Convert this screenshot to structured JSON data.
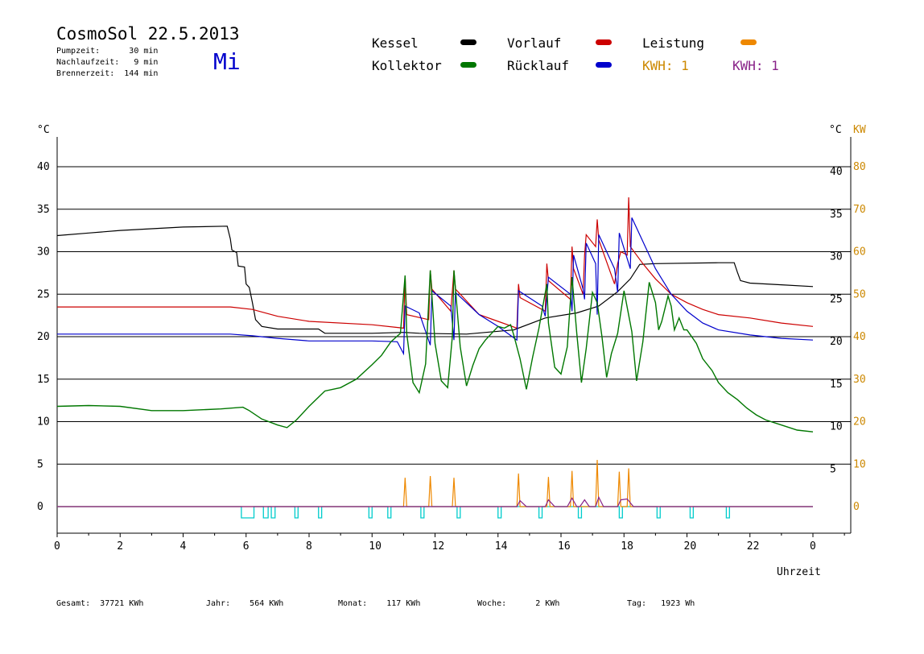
{
  "header": {
    "title": "CosmoSol 22.5.2013",
    "pump": "Pumpzeit:      30 min",
    "nachlauf": "Nachlaufzeit:   9 min",
    "brenner": "Brennerzeit:  144 min",
    "day": "Mi"
  },
  "legend": {
    "kessel": "Kessel",
    "kollektor": "Kollektor",
    "vorlauf": "Vorlauf",
    "ruecklauf": "Rücklauf",
    "leistung": "Leistung",
    "kwh1": "KWH: 1",
    "kwh2": "KWH: 1"
  },
  "colors": {
    "kessel": "#000000",
    "kollektor": "#007700",
    "vorlauf": "#cc0000",
    "ruecklauf": "#0000cc",
    "leistung": "#ee8800",
    "kwh2": "#882288",
    "pump": "#00cccc",
    "right_kw": "#cc8800"
  },
  "footer": {
    "gesamt": "Gesamt:  37721 KWh",
    "jahr": "Jahr:    564 KWh",
    "monat": "Monat:    117 KWh",
    "woche": "Woche:      2 KWh",
    "tag": "Tag:   1923 Wh"
  },
  "chart_data": {
    "type": "line",
    "left_unit": "°C",
    "right_unit_temp": "°C",
    "right_unit_kw": "KW",
    "xlabel": "Uhrzeit",
    "x_ticks": [
      "0",
      "2",
      "4",
      "6",
      "8",
      "10",
      "12",
      "14",
      "16",
      "18",
      "20",
      "22",
      "0"
    ],
    "y_ticks": [
      "0",
      "5",
      "10",
      "15",
      "20",
      "25",
      "30",
      "35",
      "40"
    ],
    "y_ticks_right": [
      "5",
      "10",
      "15",
      "20",
      "25",
      "30",
      "35",
      "40"
    ],
    "kw_ticks": [
      "0",
      "10",
      "20",
      "30",
      "40",
      "50",
      "60",
      "70",
      "80"
    ],
    "xlim": [
      0,
      24
    ],
    "ylim": [
      -3,
      45
    ],
    "grid": "horizontal",
    "series": [
      {
        "name": "Kessel",
        "key": "kessel",
        "points": [
          [
            0,
            31.9
          ],
          [
            1,
            32.2
          ],
          [
            2,
            32.5
          ],
          [
            3,
            32.7
          ],
          [
            4,
            32.9
          ],
          [
            5.4,
            33.0
          ],
          [
            5.5,
            31.5
          ],
          [
            5.55,
            30.2
          ],
          [
            5.7,
            29.9
          ],
          [
            5.75,
            28.3
          ],
          [
            5.95,
            28.2
          ],
          [
            6.0,
            26.2
          ],
          [
            6.1,
            25.8
          ],
          [
            6.2,
            24.0
          ],
          [
            6.3,
            22.0
          ],
          [
            6.5,
            21.2
          ],
          [
            7.0,
            20.9
          ],
          [
            8.3,
            20.9
          ],
          [
            8.5,
            20.4
          ],
          [
            10.0,
            20.4
          ],
          [
            11.0,
            20.5
          ],
          [
            11.5,
            20.4
          ],
          [
            13.0,
            20.3
          ],
          [
            14.5,
            20.8
          ],
          [
            15.5,
            22.2
          ],
          [
            16.5,
            22.8
          ],
          [
            17.2,
            23.6
          ],
          [
            17.8,
            25.3
          ],
          [
            18.2,
            26.8
          ],
          [
            18.5,
            28.5
          ],
          [
            19.0,
            28.6
          ],
          [
            21.0,
            28.7
          ],
          [
            21.5,
            28.7
          ],
          [
            21.6,
            27.6
          ],
          [
            21.7,
            26.6
          ],
          [
            22.0,
            26.3
          ],
          [
            23.0,
            26.1
          ],
          [
            24.0,
            25.9
          ]
        ]
      },
      {
        "name": "Vorlauf",
        "key": "vorlauf",
        "points": [
          [
            0,
            23.5
          ],
          [
            5.5,
            23.5
          ],
          [
            6.2,
            23.2
          ],
          [
            7.0,
            22.4
          ],
          [
            8.0,
            21.8
          ],
          [
            10.0,
            21.4
          ],
          [
            11.0,
            21.0
          ],
          [
            11.05,
            27.2
          ],
          [
            11.1,
            22.6
          ],
          [
            11.8,
            22.0
          ],
          [
            11.85,
            27.8
          ],
          [
            11.9,
            25.6
          ],
          [
            12.5,
            23.0
          ],
          [
            12.6,
            27.8
          ],
          [
            12.65,
            25.6
          ],
          [
            13.4,
            22.6
          ],
          [
            14.0,
            21.8
          ],
          [
            14.6,
            21.0
          ],
          [
            14.65,
            26.2
          ],
          [
            14.7,
            24.6
          ],
          [
            15.5,
            23.0
          ],
          [
            15.55,
            28.6
          ],
          [
            15.6,
            26.6
          ],
          [
            16.3,
            24.4
          ],
          [
            16.35,
            30.6
          ],
          [
            16.4,
            28.0
          ],
          [
            16.7,
            25.0
          ],
          [
            16.75,
            29.6
          ],
          [
            16.8,
            32.0
          ],
          [
            17.1,
            30.6
          ],
          [
            17.15,
            33.8
          ],
          [
            17.2,
            31.4
          ],
          [
            17.7,
            26.2
          ],
          [
            17.8,
            28.6
          ],
          [
            17.9,
            30.0
          ],
          [
            18.1,
            29.6
          ],
          [
            18.15,
            36.4
          ],
          [
            18.2,
            30.6
          ],
          [
            18.6,
            28.6
          ],
          [
            19.0,
            26.8
          ],
          [
            19.5,
            25.0
          ],
          [
            20.0,
            24.0
          ],
          [
            20.5,
            23.2
          ],
          [
            21.0,
            22.6
          ],
          [
            22.0,
            22.2
          ],
          [
            23.0,
            21.6
          ],
          [
            24.0,
            21.2
          ]
        ]
      },
      {
        "name": "Rücklauf",
        "key": "ruecklauf",
        "points": [
          [
            0,
            20.3
          ],
          [
            5.5,
            20.3
          ],
          [
            6.2,
            20.1
          ],
          [
            7.0,
            19.8
          ],
          [
            8.0,
            19.5
          ],
          [
            10.0,
            19.5
          ],
          [
            10.8,
            19.4
          ],
          [
            11.0,
            18.0
          ],
          [
            11.05,
            23.6
          ],
          [
            11.5,
            22.8
          ],
          [
            11.85,
            19.0
          ],
          [
            11.9,
            25.4
          ],
          [
            12.5,
            23.6
          ],
          [
            12.6,
            19.6
          ],
          [
            12.65,
            25.2
          ],
          [
            13.4,
            22.6
          ],
          [
            14.0,
            21.2
          ],
          [
            14.6,
            19.6
          ],
          [
            14.65,
            25.4
          ],
          [
            15.4,
            23.6
          ],
          [
            15.5,
            22.4
          ],
          [
            15.6,
            27.0
          ],
          [
            16.3,
            25.0
          ],
          [
            16.35,
            23.0
          ],
          [
            16.4,
            29.6
          ],
          [
            16.7,
            25.6
          ],
          [
            16.75,
            24.4
          ],
          [
            16.8,
            31.0
          ],
          [
            17.1,
            28.6
          ],
          [
            17.15,
            22.6
          ],
          [
            17.2,
            32.0
          ],
          [
            17.7,
            28.0
          ],
          [
            17.8,
            25.2
          ],
          [
            17.85,
            32.2
          ],
          [
            18.2,
            28.0
          ],
          [
            18.25,
            34.0
          ],
          [
            18.5,
            32.0
          ],
          [
            19.0,
            28.0
          ],
          [
            19.5,
            25.0
          ],
          [
            20.0,
            23.0
          ],
          [
            20.5,
            21.6
          ],
          [
            21.0,
            20.8
          ],
          [
            22.0,
            20.2
          ],
          [
            23.0,
            19.8
          ],
          [
            24.0,
            19.6
          ]
        ]
      },
      {
        "name": "Kollektor",
        "key": "kollektor",
        "points": [
          [
            0,
            11.8
          ],
          [
            1,
            11.9
          ],
          [
            2,
            11.8
          ],
          [
            3,
            11.3
          ],
          [
            4,
            11.3
          ],
          [
            5.2,
            11.5
          ],
          [
            5.9,
            11.7
          ],
          [
            6.1,
            11.3
          ],
          [
            6.5,
            10.3
          ],
          [
            7.0,
            9.6
          ],
          [
            7.3,
            9.3
          ],
          [
            7.6,
            10.2
          ],
          [
            8.0,
            11.8
          ],
          [
            8.5,
            13.6
          ],
          [
            9.0,
            14.0
          ],
          [
            9.5,
            15.0
          ],
          [
            10.0,
            16.7
          ],
          [
            10.3,
            17.8
          ],
          [
            10.6,
            19.4
          ],
          [
            10.9,
            20.4
          ],
          [
            11.05,
            27.2
          ],
          [
            11.1,
            20.4
          ],
          [
            11.3,
            14.6
          ],
          [
            11.5,
            13.4
          ],
          [
            11.7,
            16.8
          ],
          [
            11.85,
            27.8
          ],
          [
            12.0,
            19.2
          ],
          [
            12.2,
            14.8
          ],
          [
            12.4,
            14.0
          ],
          [
            12.55,
            20.0
          ],
          [
            12.6,
            27.8
          ],
          [
            12.8,
            18.8
          ],
          [
            13.0,
            14.2
          ],
          [
            13.2,
            16.6
          ],
          [
            13.4,
            18.6
          ],
          [
            13.6,
            19.6
          ],
          [
            13.8,
            20.4
          ],
          [
            14.0,
            21.2
          ],
          [
            14.2,
            21.0
          ],
          [
            14.4,
            21.4
          ],
          [
            14.5,
            20.2
          ],
          [
            14.7,
            17.4
          ],
          [
            14.9,
            13.8
          ],
          [
            15.1,
            17.6
          ],
          [
            15.3,
            21.0
          ],
          [
            15.55,
            26.2
          ],
          [
            15.6,
            21.6
          ],
          [
            15.8,
            16.4
          ],
          [
            16.0,
            15.6
          ],
          [
            16.2,
            18.8
          ],
          [
            16.35,
            27.0
          ],
          [
            16.5,
            20.4
          ],
          [
            16.65,
            14.6
          ],
          [
            16.8,
            18.6
          ],
          [
            17.0,
            25.2
          ],
          [
            17.15,
            24.0
          ],
          [
            17.3,
            20.0
          ],
          [
            17.45,
            15.2
          ],
          [
            17.6,
            18.0
          ],
          [
            17.8,
            20.4
          ],
          [
            18.0,
            25.4
          ],
          [
            18.25,
            20.6
          ],
          [
            18.4,
            14.8
          ],
          [
            18.6,
            19.4
          ],
          [
            18.8,
            26.4
          ],
          [
            19.0,
            24.0
          ],
          [
            19.1,
            20.8
          ],
          [
            19.2,
            21.8
          ],
          [
            19.4,
            24.8
          ],
          [
            19.5,
            23.6
          ],
          [
            19.6,
            20.8
          ],
          [
            19.75,
            22.2
          ],
          [
            19.9,
            20.8
          ],
          [
            20.0,
            20.8
          ],
          [
            20.3,
            19.2
          ],
          [
            20.5,
            17.4
          ],
          [
            20.8,
            16.0
          ],
          [
            21.0,
            14.6
          ],
          [
            21.3,
            13.4
          ],
          [
            21.6,
            12.6
          ],
          [
            21.9,
            11.6
          ],
          [
            22.2,
            10.8
          ],
          [
            22.5,
            10.2
          ],
          [
            23.0,
            9.6
          ],
          [
            23.5,
            9.0
          ],
          [
            24.0,
            8.8
          ]
        ]
      },
      {
        "name": "Leistung",
        "key": "leistung",
        "unit": "KW",
        "points": [
          [
            0,
            0
          ],
          [
            11.0,
            0
          ],
          [
            11.05,
            6.8
          ],
          [
            11.1,
            0
          ],
          [
            11.8,
            0
          ],
          [
            11.85,
            7.2
          ],
          [
            11.9,
            0
          ],
          [
            12.55,
            0
          ],
          [
            12.6,
            6.8
          ],
          [
            12.65,
            0
          ],
          [
            14.6,
            0
          ],
          [
            14.65,
            7.8
          ],
          [
            14.7,
            0
          ],
          [
            15.55,
            0
          ],
          [
            15.6,
            7.0
          ],
          [
            15.65,
            0
          ],
          [
            16.3,
            0
          ],
          [
            16.35,
            8.4
          ],
          [
            16.4,
            0
          ],
          [
            17.1,
            0
          ],
          [
            17.15,
            11.0
          ],
          [
            17.2,
            0
          ],
          [
            17.8,
            0
          ],
          [
            17.85,
            8.2
          ],
          [
            17.9,
            0
          ],
          [
            18.1,
            0
          ],
          [
            18.15,
            9.0
          ],
          [
            18.2,
            0
          ],
          [
            24.0,
            0
          ]
        ]
      },
      {
        "name": "KWH",
        "key": "kwh2",
        "unit": "KW",
        "points": [
          [
            0,
            0
          ],
          [
            14.6,
            0
          ],
          [
            14.7,
            1.4
          ],
          [
            14.9,
            0
          ],
          [
            15.5,
            0
          ],
          [
            15.6,
            1.6
          ],
          [
            15.8,
            0
          ],
          [
            16.2,
            0
          ],
          [
            16.35,
            2.0
          ],
          [
            16.5,
            0
          ],
          [
            16.6,
            0
          ],
          [
            16.75,
            1.6
          ],
          [
            16.9,
            0
          ],
          [
            17.1,
            0
          ],
          [
            17.2,
            2.2
          ],
          [
            17.35,
            0
          ],
          [
            17.8,
            0
          ],
          [
            17.9,
            1.6
          ],
          [
            18.1,
            1.8
          ],
          [
            18.3,
            0
          ],
          [
            24.0,
            0
          ]
        ]
      }
    ],
    "pump_pulses": [
      [
        5.85,
        6.25
      ],
      [
        6.55,
        6.7
      ],
      [
        6.8,
        6.92
      ],
      [
        7.55,
        7.65
      ],
      [
        8.3,
        8.4
      ],
      [
        9.9,
        10.0
      ],
      [
        10.5,
        10.6
      ],
      [
        11.55,
        11.65
      ],
      [
        12.7,
        12.8
      ],
      [
        14.0,
        14.1
      ],
      [
        15.3,
        15.4
      ],
      [
        16.55,
        16.65
      ],
      [
        17.85,
        17.95
      ],
      [
        19.05,
        19.15
      ],
      [
        20.1,
        20.2
      ],
      [
        21.25,
        21.35
      ]
    ]
  }
}
